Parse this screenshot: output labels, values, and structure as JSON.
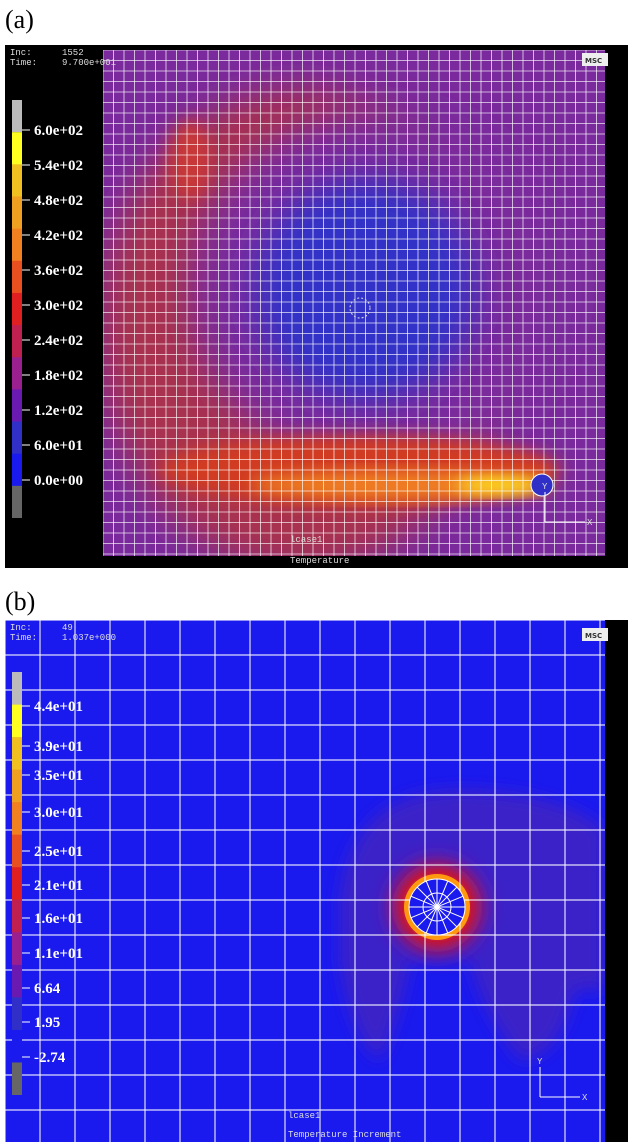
{
  "panels": [
    {
      "label": "(a)",
      "inc_label": "Inc:",
      "inc": "1552",
      "time_label": "Time:",
      "time": "9.700e+001",
      "logo": "MSC",
      "legend": [
        "6.0e+02",
        "5.4e+02",
        "4.8e+02",
        "4.2e+02",
        "3.6e+02",
        "3.0e+02",
        "2.4e+02",
        "1.8e+02",
        "1.2e+02",
        "6.0e+01",
        "0.0e+00"
      ],
      "footer": [
        "lcase1",
        "Temperature"
      ],
      "axis_x": "X",
      "axis_y": "Y"
    },
    {
      "label": "(b)",
      "inc_label": "Inc:",
      "inc": "49",
      "time_label": "Time:",
      "time": "1.037e+000",
      "logo": "MSC",
      "legend": [
        "4.4e+01",
        "3.9e+01",
        "3.5e+01",
        "3.0e+01",
        "2.5e+01",
        "2.1e+01",
        "1.6e+01",
        "1.1e+01",
        "6.64",
        "1.95",
        "-2.74"
      ],
      "footer": [
        "lcase1",
        "Temperature Increment"
      ],
      "axis_x": "X",
      "axis_y": "Y"
    }
  ]
}
